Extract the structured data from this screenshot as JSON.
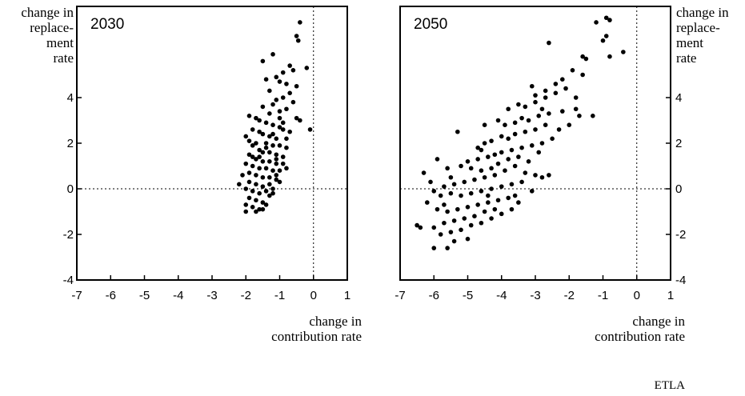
{
  "chart_data": [
    {
      "type": "scatter",
      "title": "2030",
      "xlabel": "change in contribution rate",
      "ylabel": "change in replacement rate",
      "xlim": [
        -7,
        1
      ],
      "ylim": [
        -4,
        8
      ],
      "x_ticks": [
        "-7",
        "-6",
        "-5",
        "-4",
        "-3",
        "-2",
        "-1",
        "0",
        "1"
      ],
      "y_ticks": [
        "-4",
        "-2",
        "0",
        "2",
        "4"
      ],
      "reference_lines": {
        "x": 0,
        "y": 0,
        "style": "dotted"
      },
      "grid": false,
      "points": [
        [
          -0.4,
          7.3
        ],
        [
          -0.5,
          6.7
        ],
        [
          -0.45,
          6.5
        ],
        [
          -1.5,
          5.6
        ],
        [
          -1.2,
          5.9
        ],
        [
          -0.7,
          5.4
        ],
        [
          -0.6,
          5.2
        ],
        [
          -0.2,
          5.3
        ],
        [
          -0.9,
          5.1
        ],
        [
          -1.1,
          4.9
        ],
        [
          -0.8,
          4.6
        ],
        [
          -0.5,
          4.5
        ],
        [
          -1.0,
          4.7
        ],
        [
          -1.4,
          4.8
        ],
        [
          -1.3,
          4.3
        ],
        [
          -0.7,
          4.2
        ],
        [
          -0.9,
          4.0
        ],
        [
          -1.1,
          3.9
        ],
        [
          -0.6,
          3.8
        ],
        [
          -1.2,
          3.7
        ],
        [
          -1.5,
          3.6
        ],
        [
          -0.8,
          3.5
        ],
        [
          -1.0,
          3.4
        ],
        [
          -1.3,
          3.3
        ],
        [
          -0.5,
          3.1
        ],
        [
          -0.4,
          3.0
        ],
        [
          -0.1,
          2.6
        ],
        [
          -1.9,
          3.2
        ],
        [
          -1.7,
          3.1
        ],
        [
          -1.6,
          3.0
        ],
        [
          -1.4,
          2.9
        ],
        [
          -1.2,
          2.8
        ],
        [
          -1.0,
          2.7
        ],
        [
          -0.9,
          2.6
        ],
        [
          -0.7,
          2.5
        ],
        [
          -1.8,
          2.6
        ],
        [
          -1.6,
          2.5
        ],
        [
          -1.5,
          2.4
        ],
        [
          -1.3,
          2.3
        ],
        [
          -1.1,
          2.2
        ],
        [
          -0.8,
          2.2
        ],
        [
          -2.0,
          2.3
        ],
        [
          -1.9,
          2.1
        ],
        [
          -1.7,
          2.0
        ],
        [
          -1.4,
          2.0
        ],
        [
          -1.2,
          1.9
        ],
        [
          -1.0,
          1.9
        ],
        [
          -0.8,
          1.8
        ],
        [
          -1.6,
          1.7
        ],
        [
          -1.5,
          1.6
        ],
        [
          -1.3,
          1.6
        ],
        [
          -1.1,
          1.5
        ],
        [
          -0.9,
          1.4
        ],
        [
          -1.9,
          1.5
        ],
        [
          -1.8,
          1.4
        ],
        [
          -1.7,
          1.3
        ],
        [
          -1.5,
          1.2
        ],
        [
          -1.3,
          1.2
        ],
        [
          -1.1,
          1.1
        ],
        [
          -2.0,
          1.1
        ],
        [
          -1.8,
          1.0
        ],
        [
          -1.6,
          0.9
        ],
        [
          -1.4,
          0.9
        ],
        [
          -1.2,
          0.8
        ],
        [
          -1.0,
          0.8
        ],
        [
          -0.8,
          0.9
        ],
        [
          -1.9,
          0.7
        ],
        [
          -1.7,
          0.6
        ],
        [
          -1.5,
          0.5
        ],
        [
          -1.3,
          0.5
        ],
        [
          -1.1,
          0.4
        ],
        [
          -2.1,
          0.6
        ],
        [
          -1.9,
          0.3
        ],
        [
          -1.7,
          0.2
        ],
        [
          -1.5,
          0.1
        ],
        [
          -1.3,
          0.2
        ],
        [
          -1.0,
          0.3
        ],
        [
          -2.0,
          0.0
        ],
        [
          -1.8,
          -0.1
        ],
        [
          -1.6,
          -0.2
        ],
        [
          -1.4,
          -0.1
        ],
        [
          -1.2,
          0.0
        ],
        [
          -1.9,
          -0.4
        ],
        [
          -1.7,
          -0.5
        ],
        [
          -1.5,
          -0.6
        ],
        [
          -1.3,
          -0.3
        ],
        [
          -2.0,
          -0.7
        ],
        [
          -1.8,
          -0.8
        ],
        [
          -1.6,
          -0.9
        ],
        [
          -1.4,
          -0.7
        ],
        [
          -2.0,
          -1.0
        ],
        [
          -1.7,
          -1.0
        ],
        [
          -1.5,
          -0.9
        ],
        [
          -1.2,
          -0.2
        ],
        [
          -2.2,
          0.2
        ],
        [
          -1.1,
          1.3
        ],
        [
          -0.9,
          2.9
        ],
        [
          -1.0,
          3.1
        ],
        [
          -1.2,
          2.4
        ],
        [
          -1.4,
          1.8
        ],
        [
          -1.6,
          1.4
        ],
        [
          -1.8,
          1.9
        ],
        [
          -1.1,
          0.6
        ],
        [
          -0.9,
          1.1
        ]
      ]
    },
    {
      "type": "scatter",
      "title": "2050",
      "xlabel": "change in contribution rate",
      "ylabel": "change in replacement rate",
      "xlim": [
        -7,
        1
      ],
      "ylim": [
        -4,
        8
      ],
      "x_ticks": [
        "-7",
        "-6",
        "-5",
        "-4",
        "-3",
        "-2",
        "-1",
        "0",
        "1"
      ],
      "y_ticks": [
        "-4",
        "-2",
        "0",
        "2",
        "4"
      ],
      "reference_lines": {
        "x": 0,
        "y": 0,
        "style": "dotted"
      },
      "grid": false,
      "points": [
        [
          -0.9,
          7.5
        ],
        [
          -0.8,
          7.4
        ],
        [
          -1.2,
          7.3
        ],
        [
          -0.9,
          6.7
        ],
        [
          -1.0,
          6.5
        ],
        [
          -0.4,
          6.0
        ],
        [
          -0.8,
          5.8
        ],
        [
          -1.5,
          5.7
        ],
        [
          -1.6,
          5.8
        ],
        [
          -2.6,
          6.4
        ],
        [
          -1.9,
          5.2
        ],
        [
          -1.6,
          5.0
        ],
        [
          -2.2,
          4.8
        ],
        [
          -2.4,
          4.6
        ],
        [
          -2.7,
          4.3
        ],
        [
          -2.1,
          4.4
        ],
        [
          -3.1,
          4.5
        ],
        [
          -2.4,
          4.2
        ],
        [
          -2.7,
          4.0
        ],
        [
          -1.8,
          4.0
        ],
        [
          -1.8,
          3.5
        ],
        [
          -1.7,
          3.2
        ],
        [
          -1.3,
          3.2
        ],
        [
          -2.0,
          2.8
        ],
        [
          -3.0,
          3.8
        ],
        [
          -3.3,
          3.6
        ],
        [
          -3.5,
          3.7
        ],
        [
          -3.8,
          3.5
        ],
        [
          -2.8,
          3.5
        ],
        [
          -2.6,
          3.3
        ],
        [
          -2.9,
          3.2
        ],
        [
          -3.2,
          3.0
        ],
        [
          -3.4,
          3.1
        ],
        [
          -3.6,
          2.9
        ],
        [
          -3.9,
          2.8
        ],
        [
          -4.1,
          3.0
        ],
        [
          -2.7,
          2.8
        ],
        [
          -3.0,
          2.6
        ],
        [
          -3.3,
          2.5
        ],
        [
          -3.6,
          2.4
        ],
        [
          -3.8,
          2.2
        ],
        [
          -4.0,
          2.3
        ],
        [
          -4.3,
          2.1
        ],
        [
          -4.5,
          2.0
        ],
        [
          -2.8,
          2.0
        ],
        [
          -3.1,
          1.9
        ],
        [
          -3.4,
          1.8
        ],
        [
          -3.7,
          1.7
        ],
        [
          -4.0,
          1.6
        ],
        [
          -4.2,
          1.5
        ],
        [
          -4.4,
          1.4
        ],
        [
          -4.7,
          1.3
        ],
        [
          -5.0,
          1.2
        ],
        [
          -3.5,
          1.4
        ],
        [
          -3.8,
          1.3
        ],
        [
          -4.1,
          1.1
        ],
        [
          -4.3,
          0.9
        ],
        [
          -4.6,
          0.8
        ],
        [
          -4.9,
          0.9
        ],
        [
          -5.2,
          1.0
        ],
        [
          -5.6,
          0.9
        ],
        [
          -3.2,
          1.2
        ],
        [
          -3.6,
          1.0
        ],
        [
          -3.9,
          0.8
        ],
        [
          -4.2,
          0.6
        ],
        [
          -4.5,
          0.5
        ],
        [
          -4.8,
          0.4
        ],
        [
          -5.1,
          0.3
        ],
        [
          -5.4,
          0.2
        ],
        [
          -5.7,
          0.1
        ],
        [
          -3.0,
          0.6
        ],
        [
          -3.3,
          0.7
        ],
        [
          -2.8,
          0.5
        ],
        [
          -2.6,
          0.6
        ],
        [
          -3.4,
          0.3
        ],
        [
          -3.7,
          0.2
        ],
        [
          -4.0,
          0.1
        ],
        [
          -4.3,
          0.0
        ],
        [
          -4.6,
          -0.1
        ],
        [
          -4.9,
          -0.2
        ],
        [
          -5.2,
          -0.3
        ],
        [
          -5.5,
          -0.2
        ],
        [
          -5.8,
          -0.3
        ],
        [
          -6.0,
          -0.1
        ],
        [
          -6.3,
          0.7
        ],
        [
          -5.9,
          1.3
        ],
        [
          -5.3,
          2.5
        ],
        [
          -4.7,
          1.8
        ],
        [
          -4.5,
          2.8
        ],
        [
          -3.8,
          -0.4
        ],
        [
          -4.1,
          -0.5
        ],
        [
          -4.4,
          -0.6
        ],
        [
          -4.7,
          -0.7
        ],
        [
          -5.0,
          -0.8
        ],
        [
          -5.3,
          -0.9
        ],
        [
          -5.6,
          -1.0
        ],
        [
          -5.9,
          -0.9
        ],
        [
          -6.2,
          -0.6
        ],
        [
          -4.2,
          -0.9
        ],
        [
          -4.5,
          -1.0
        ],
        [
          -4.8,
          -1.2
        ],
        [
          -5.1,
          -1.3
        ],
        [
          -5.4,
          -1.4
        ],
        [
          -5.7,
          -1.5
        ],
        [
          -6.0,
          -1.7
        ],
        [
          -6.4,
          -1.7
        ],
        [
          -4.9,
          -1.6
        ],
        [
          -5.2,
          -1.8
        ],
        [
          -5.5,
          -1.9
        ],
        [
          -5.8,
          -2.0
        ],
        [
          -5.0,
          -2.2
        ],
        [
          -5.4,
          -2.3
        ],
        [
          -6.0,
          -2.6
        ],
        [
          -5.6,
          -2.6
        ],
        [
          -4.6,
          -1.5
        ],
        [
          -4.3,
          -1.3
        ],
        [
          -4.0,
          -1.1
        ],
        [
          -3.7,
          -0.9
        ],
        [
          -3.5,
          -0.6
        ],
        [
          -2.9,
          1.6
        ],
        [
          -2.5,
          2.2
        ],
        [
          -2.3,
          2.6
        ],
        [
          -2.2,
          3.4
        ],
        [
          -3.0,
          4.1
        ],
        [
          -4.6,
          1.7
        ],
        [
          -5.5,
          0.5
        ],
        [
          -6.1,
          0.3
        ],
        [
          -3.1,
          -0.1
        ],
        [
          -3.6,
          -0.3
        ],
        [
          -4.4,
          -0.3
        ],
        [
          -5.7,
          -0.7
        ],
        [
          -6.5,
          -1.6
        ]
      ]
    }
  ],
  "labels": {
    "yaxis_lines": [
      "change in",
      "replace-",
      "ment",
      "rate"
    ],
    "xaxis_lines": [
      "change in",
      "contribution rate"
    ],
    "source": "ETLA"
  }
}
